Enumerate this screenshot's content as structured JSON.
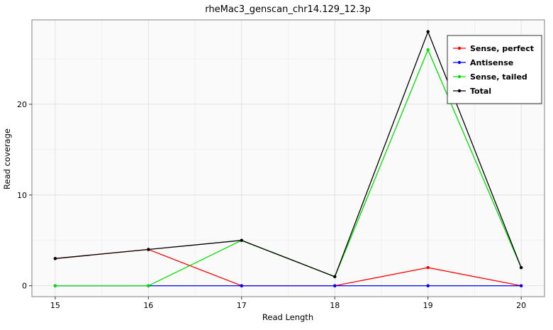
{
  "figure": {
    "title": "rheMac3_genscan_chr14.129_12.3p"
  },
  "chart_data": {
    "type": "line",
    "title": "rheMac3_genscan_chr14.129_12.3p",
    "xlabel": "Read Length",
    "ylabel": "Read coverage",
    "x": [
      15,
      16,
      17,
      18,
      19,
      20
    ],
    "series": [
      {
        "name": "Sense, perfect",
        "color": "#FF0000",
        "values": [
          3,
          4,
          0,
          0,
          2,
          0
        ]
      },
      {
        "name": "Antisense",
        "color": "#0000FF",
        "values": [
          0,
          0,
          0,
          0,
          0,
          0
        ]
      },
      {
        "name": "Sense, tailed",
        "color": "#00E000",
        "values": [
          0,
          0,
          5,
          1,
          26,
          2
        ]
      },
      {
        "name": "Total",
        "color": "#000000",
        "values": [
          3,
          4,
          5,
          1,
          28,
          2
        ]
      }
    ],
    "x_ticks": [
      15,
      16,
      17,
      18,
      19,
      20
    ],
    "y_ticks": [
      0,
      10,
      20
    ],
    "y_minor_ticks": [
      5,
      15,
      25
    ],
    "x_minor_ticks": [
      15.5,
      16.5,
      17.5,
      18.5,
      19.5
    ],
    "xlim": [
      14.75,
      20.25
    ],
    "ylim": [
      -1.2,
      29.3
    ],
    "legend_position": "top-right",
    "grid": true,
    "panel_fill": "#FAFAFA",
    "panel_border": "#808080",
    "grid_major_color": "#E2E2E2",
    "grid_minor_color": "#F0F0F0",
    "legend_border": "#333333",
    "legend_fill": "#FFFFFF"
  }
}
